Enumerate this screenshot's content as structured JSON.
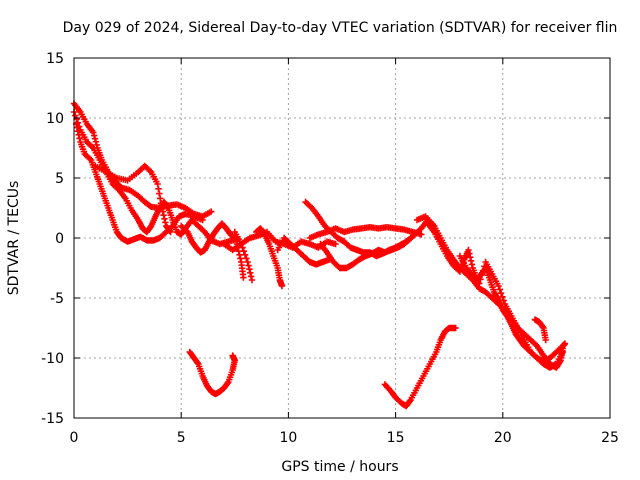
{
  "chart_data": {
    "type": "scatter",
    "title": "Day 029 of 2024, Sidereal Day-to-day VTEC variation (SDTVAR) for receiver flin",
    "xlabel": "GPS time / hours",
    "ylabel": "SDTVAR / TECUs",
    "xlim": [
      0,
      25
    ],
    "ylim": [
      -15,
      15
    ],
    "xticks": [
      0,
      5,
      10,
      15,
      20,
      25
    ],
    "yticks": [
      -15,
      -10,
      -5,
      0,
      5,
      10,
      15
    ],
    "xtick_labels": [
      "0",
      "5",
      "10",
      "15",
      "20",
      "25"
    ],
    "ytick_labels": [
      "-15",
      "-10",
      "-5",
      "0",
      "5",
      "10",
      "15"
    ],
    "grid": true,
    "color": "#ff0000",
    "marker": "+",
    "series": [
      {
        "name": "s1",
        "points": [
          [
            0.0,
            11.2
          ],
          [
            0.3,
            10.5
          ],
          [
            0.6,
            9.5
          ],
          [
            0.9,
            8.8
          ],
          [
            1.1,
            7.5
          ],
          [
            1.3,
            6.5
          ],
          [
            1.6,
            5.5
          ],
          [
            1.9,
            4.8
          ],
          [
            2.2,
            4.2
          ],
          [
            2.6,
            4.0
          ],
          [
            3.0,
            3.5
          ],
          [
            3.3,
            3.0
          ],
          [
            3.6,
            2.6
          ],
          [
            4.0,
            2.5
          ],
          [
            4.4,
            2.7
          ],
          [
            4.8,
            2.8
          ],
          [
            5.2,
            2.5
          ],
          [
            5.6,
            2.0
          ],
          [
            6.0,
            1.8
          ],
          [
            6.4,
            2.2
          ]
        ]
      },
      {
        "name": "s2",
        "points": [
          [
            0.0,
            10.5
          ],
          [
            0.3,
            9.0
          ],
          [
            0.6,
            8.0
          ],
          [
            0.9,
            7.5
          ],
          [
            1.2,
            6.5
          ],
          [
            1.5,
            5.5
          ],
          [
            1.8,
            4.5
          ],
          [
            2.1,
            4.0
          ],
          [
            2.4,
            3.3
          ],
          [
            2.7,
            2.3
          ],
          [
            3.0,
            1.5
          ],
          [
            3.2,
            0.8
          ],
          [
            3.4,
            0.5
          ],
          [
            3.6,
            1.0
          ],
          [
            3.8,
            1.8
          ],
          [
            4.0,
            2.5
          ],
          [
            4.2,
            3.0
          ],
          [
            4.4,
            2.5
          ],
          [
            4.6,
            1.5
          ],
          [
            4.8,
            0.5
          ],
          [
            5.0,
            0.3
          ],
          [
            5.2,
            0.8
          ],
          [
            5.5,
            1.5
          ],
          [
            5.8,
            1.0
          ],
          [
            6.1,
            0.5
          ],
          [
            6.4,
            -0.2
          ],
          [
            6.8,
            -0.5
          ],
          [
            7.2,
            -0.3
          ],
          [
            7.6,
            -0.1
          ]
        ]
      },
      {
        "name": "s3",
        "points": [
          [
            0.1,
            9.5
          ],
          [
            0.3,
            8.0
          ],
          [
            0.5,
            7.0
          ],
          [
            0.8,
            6.5
          ],
          [
            1.0,
            5.5
          ],
          [
            1.2,
            4.5
          ],
          [
            1.4,
            3.5
          ],
          [
            1.6,
            2.5
          ],
          [
            1.8,
            1.5
          ],
          [
            2.0,
            0.5
          ],
          [
            2.2,
            0.0
          ],
          [
            2.5,
            -0.3
          ],
          [
            2.8,
            -0.1
          ],
          [
            3.1,
            0.1
          ],
          [
            3.4,
            -0.2
          ],
          [
            3.7,
            -0.2
          ],
          [
            4.0,
            0.0
          ],
          [
            4.3,
            0.5
          ],
          [
            4.6,
            1.0
          ],
          [
            4.9,
            1.8
          ],
          [
            5.2,
            2.0
          ],
          [
            5.6,
            1.8
          ],
          [
            6.0,
            1.5
          ]
        ]
      },
      {
        "name": "s4",
        "points": [
          [
            1.0,
            6.0
          ],
          [
            1.5,
            5.5
          ],
          [
            2.0,
            5.0
          ],
          [
            2.5,
            4.8
          ],
          [
            3.0,
            5.5
          ],
          [
            3.3,
            6.0
          ],
          [
            3.6,
            5.5
          ],
          [
            3.9,
            4.5
          ],
          [
            4.1,
            2.5
          ],
          [
            4.3,
            1.0
          ],
          [
            4.5,
            0.5
          ]
        ]
      },
      {
        "name": "s5",
        "points": [
          [
            5.0,
            1.0
          ],
          [
            5.3,
            0.5
          ],
          [
            5.5,
            -0.3
          ],
          [
            5.7,
            -0.8
          ],
          [
            5.9,
            -1.2
          ],
          [
            6.1,
            -1.0
          ],
          [
            6.3,
            -0.3
          ],
          [
            6.5,
            0.3
          ],
          [
            6.7,
            0.8
          ],
          [
            6.9,
            1.2
          ],
          [
            7.1,
            0.8
          ],
          [
            7.3,
            0.3
          ],
          [
            7.5,
            0.0
          ]
        ]
      },
      {
        "name": "s6",
        "points": [
          [
            7.0,
            -0.5
          ],
          [
            7.4,
            -1.0
          ],
          [
            7.8,
            -0.5
          ],
          [
            8.2,
            0.0
          ],
          [
            8.6,
            0.2
          ],
          [
            9.0,
            0.5
          ],
          [
            9.4,
            -0.3
          ],
          [
            9.8,
            -0.5
          ],
          [
            10.2,
            -0.8
          ],
          [
            10.6,
            -0.3
          ],
          [
            11.0,
            -0.5
          ],
          [
            11.4,
            -0.8
          ],
          [
            11.8,
            -0.3
          ],
          [
            12.2,
            -0.5
          ]
        ]
      },
      {
        "name": "s7",
        "points": [
          [
            7.5,
            0.5
          ],
          [
            7.8,
            -0.5
          ],
          [
            8.1,
            -2.0
          ],
          [
            8.3,
            -3.5
          ]
        ]
      },
      {
        "name": "s8",
        "points": [
          [
            7.6,
            -0.5
          ],
          [
            7.8,
            -2.0
          ],
          [
            7.9,
            -3.3
          ]
        ]
      },
      {
        "name": "s9",
        "points": [
          [
            8.5,
            0.5
          ],
          [
            8.7,
            0.8
          ],
          [
            8.9,
            0.3
          ],
          [
            9.1,
            -0.5
          ],
          [
            9.3,
            -1.5
          ],
          [
            9.5,
            -2.5
          ],
          [
            9.6,
            -3.5
          ],
          [
            9.7,
            -4.0
          ]
        ]
      },
      {
        "name": "s10",
        "points": [
          [
            9.5,
            -1.0
          ],
          [
            9.8,
            0.0
          ],
          [
            10.1,
            -0.5
          ],
          [
            10.4,
            -1.0
          ],
          [
            10.7,
            -1.5
          ],
          [
            11.0,
            -2.0
          ],
          [
            11.3,
            -2.2
          ],
          [
            11.6,
            -2.0
          ],
          [
            11.9,
            -1.8
          ]
        ]
      },
      {
        "name": "s11",
        "points": [
          [
            10.8,
            3.0
          ],
          [
            11.1,
            2.5
          ],
          [
            11.4,
            1.8
          ],
          [
            11.7,
            1.0
          ],
          [
            12.0,
            0.5
          ],
          [
            12.3,
            0.0
          ],
          [
            12.6,
            -0.3
          ],
          [
            12.9,
            -0.8
          ],
          [
            13.2,
            -1.0
          ],
          [
            13.5,
            -1.2
          ],
          [
            13.8,
            -1.2
          ],
          [
            14.1,
            -1.5
          ],
          [
            14.4,
            -1.3
          ],
          [
            14.7,
            -1.0
          ],
          [
            15.0,
            -0.8
          ],
          [
            15.3,
            -0.5
          ],
          [
            15.6,
            -0.2
          ],
          [
            15.9,
            0.3
          ],
          [
            16.2,
            0.8
          ],
          [
            16.5,
            1.5
          ],
          [
            16.8,
            1.0
          ]
        ]
      },
      {
        "name": "s12",
        "points": [
          [
            11.5,
            -0.5
          ],
          [
            11.8,
            -1.2
          ],
          [
            12.1,
            -2.0
          ],
          [
            12.4,
            -2.5
          ],
          [
            12.7,
            -2.5
          ],
          [
            13.0,
            -2.2
          ],
          [
            13.3,
            -1.8
          ],
          [
            13.6,
            -1.5
          ],
          [
            13.9,
            -1.3
          ],
          [
            14.2,
            -1.0
          ],
          [
            14.5,
            -1.2
          ],
          [
            14.8,
            -1.0
          ],
          [
            15.1,
            -0.8
          ],
          [
            15.4,
            -0.5
          ],
          [
            15.7,
            0.0
          ]
        ]
      },
      {
        "name": "s13",
        "points": [
          [
            11.0,
            0.0
          ],
          [
            11.4,
            0.3
          ],
          [
            11.8,
            0.5
          ],
          [
            12.2,
            0.8
          ],
          [
            12.6,
            0.5
          ],
          [
            13.0,
            0.7
          ],
          [
            13.4,
            0.8
          ],
          [
            13.8,
            0.9
          ],
          [
            14.2,
            0.8
          ],
          [
            14.6,
            0.9
          ],
          [
            15.0,
            0.8
          ],
          [
            15.4,
            0.7
          ],
          [
            15.8,
            0.5
          ],
          [
            16.2,
            0.3
          ]
        ]
      },
      {
        "name": "s14",
        "points": [
          [
            16.0,
            1.5
          ],
          [
            16.4,
            1.8
          ],
          [
            16.8,
            1.0
          ],
          [
            17.1,
            0.0
          ],
          [
            17.4,
            -1.0
          ],
          [
            17.7,
            -1.8
          ],
          [
            18.0,
            -2.5
          ],
          [
            18.3,
            -3.0
          ],
          [
            18.6,
            -3.5
          ],
          [
            18.9,
            -4.2
          ],
          [
            19.2,
            -4.5
          ],
          [
            19.5,
            -5.0
          ],
          [
            19.8,
            -5.5
          ],
          [
            20.1,
            -6.0
          ],
          [
            20.4,
            -6.8
          ],
          [
            20.7,
            -7.5
          ],
          [
            21.0,
            -8.0
          ],
          [
            21.3,
            -8.5
          ],
          [
            21.6,
            -9.0
          ],
          [
            21.9,
            -9.8
          ],
          [
            22.2,
            -10.5
          ],
          [
            22.5,
            -10.8
          ],
          [
            22.7,
            -10.2
          ],
          [
            22.8,
            -9.2
          ]
        ]
      },
      {
        "name": "s15",
        "points": [
          [
            16.5,
            1.2
          ],
          [
            16.8,
            0.5
          ],
          [
            17.1,
            -0.5
          ],
          [
            17.4,
            -1.5
          ],
          [
            17.7,
            -2.3
          ],
          [
            18.0,
            -2.8
          ],
          [
            18.2,
            -1.8
          ],
          [
            18.4,
            -1.0
          ],
          [
            18.6,
            -2.5
          ],
          [
            18.8,
            -3.5
          ],
          [
            19.0,
            -3.0
          ],
          [
            19.2,
            -2.5
          ],
          [
            19.4,
            -3.5
          ],
          [
            19.6,
            -4.5
          ],
          [
            19.8,
            -5.2
          ],
          [
            20.0,
            -6.0
          ],
          [
            20.2,
            -6.5
          ],
          [
            20.4,
            -7.2
          ],
          [
            20.6,
            -8.0
          ],
          [
            20.8,
            -8.5
          ],
          [
            21.0,
            -9.0
          ],
          [
            21.3,
            -9.5
          ],
          [
            21.6,
            -10.0
          ],
          [
            21.9,
            -10.5
          ],
          [
            22.2,
            -10.8
          ],
          [
            22.5,
            -10.5
          ],
          [
            22.8,
            -9.5
          ]
        ]
      },
      {
        "name": "s16",
        "points": [
          [
            18.0,
            -1.5
          ],
          [
            18.3,
            -2.5
          ],
          [
            18.6,
            -3.2
          ],
          [
            18.9,
            -3.8
          ],
          [
            19.2,
            -2.0
          ],
          [
            19.5,
            -3.0
          ],
          [
            19.8,
            -4.0
          ],
          [
            20.1,
            -5.5
          ],
          [
            20.4,
            -6.5
          ],
          [
            20.7,
            -7.5
          ],
          [
            21.0,
            -8.5
          ],
          [
            21.3,
            -9.5
          ],
          [
            21.6,
            -10.0
          ],
          [
            21.9,
            -10.3
          ],
          [
            22.2,
            -10.0
          ],
          [
            22.5,
            -9.5
          ],
          [
            22.8,
            -9.0
          ],
          [
            22.9,
            -8.8
          ]
        ]
      },
      {
        "name": "s17",
        "points": [
          [
            21.5,
            -6.8
          ],
          [
            21.7,
            -7.0
          ],
          [
            21.9,
            -7.5
          ],
          [
            22.0,
            -8.5
          ]
        ]
      },
      {
        "name": "s18",
        "points": [
          [
            5.4,
            -9.5
          ],
          [
            5.6,
            -10.0
          ],
          [
            5.8,
            -10.5
          ],
          [
            6.0,
            -11.5
          ],
          [
            6.2,
            -12.3
          ],
          [
            6.4,
            -12.8
          ],
          [
            6.6,
            -13.0
          ],
          [
            6.8,
            -12.8
          ],
          [
            7.0,
            -12.5
          ],
          [
            7.2,
            -12.0
          ],
          [
            7.4,
            -11.0
          ],
          [
            7.5,
            -10.2
          ],
          [
            7.4,
            -9.8
          ]
        ]
      },
      {
        "name": "s19",
        "points": [
          [
            14.5,
            -12.2
          ],
          [
            14.8,
            -12.8
          ],
          [
            15.0,
            -13.3
          ],
          [
            15.3,
            -13.8
          ],
          [
            15.5,
            -14.0
          ],
          [
            15.7,
            -13.5
          ],
          [
            16.0,
            -12.5
          ],
          [
            16.3,
            -11.5
          ],
          [
            16.6,
            -10.5
          ],
          [
            16.9,
            -9.5
          ],
          [
            17.1,
            -8.5
          ],
          [
            17.3,
            -7.8
          ],
          [
            17.5,
            -7.5
          ],
          [
            17.8,
            -7.5
          ]
        ]
      }
    ]
  }
}
